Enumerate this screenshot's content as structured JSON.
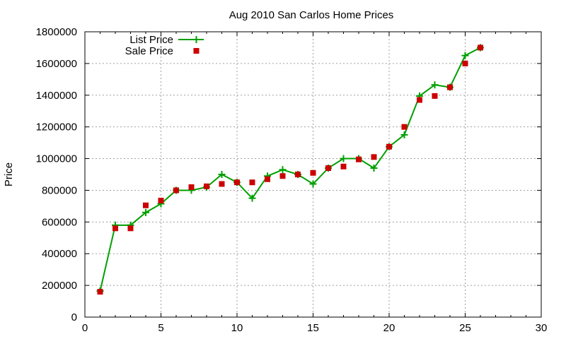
{
  "chart_data": {
    "type": "line",
    "title": "Aug 2010 San Carlos Home Prices",
    "xlabel": "",
    "ylabel": "Price",
    "xlim": [
      0,
      30
    ],
    "ylim": [
      0,
      1800000
    ],
    "x_ticks": [
      0,
      5,
      10,
      15,
      20,
      25,
      30
    ],
    "y_ticks": [
      0,
      200000,
      400000,
      600000,
      800000,
      1000000,
      1200000,
      1400000,
      1600000,
      1800000
    ],
    "grid": true,
    "legend_position": "top-left",
    "series": [
      {
        "name": "List Price",
        "style": "line-with-plus-markers",
        "color": "#00a000",
        "x": [
          1,
          2,
          3,
          4,
          5,
          6,
          7,
          8,
          9,
          10,
          11,
          12,
          13,
          14,
          15,
          16,
          17,
          18,
          19,
          20,
          21,
          22,
          23,
          24,
          25,
          26
        ],
        "y": [
          165000,
          580000,
          580000,
          660000,
          715000,
          800000,
          800000,
          820000,
          900000,
          850000,
          750000,
          890000,
          930000,
          900000,
          840000,
          940000,
          1000000,
          1000000,
          940000,
          1075000,
          1150000,
          1395000,
          1465000,
          1450000,
          1650000,
          1700000
        ]
      },
      {
        "name": "Sale Price",
        "style": "square-markers",
        "color": "#cc0000",
        "x": [
          1,
          2,
          3,
          4,
          5,
          6,
          7,
          8,
          9,
          10,
          11,
          12,
          13,
          14,
          15,
          16,
          17,
          18,
          19,
          20,
          21,
          22,
          23,
          24,
          25,
          26
        ],
        "y": [
          160000,
          560000,
          560000,
          705000,
          735000,
          800000,
          820000,
          825000,
          840000,
          850000,
          850000,
          870000,
          890000,
          900000,
          910000,
          940000,
          950000,
          995000,
          1010000,
          1075000,
          1200000,
          1370000,
          1395000,
          1450000,
          1600000,
          1700000
        ]
      }
    ]
  }
}
